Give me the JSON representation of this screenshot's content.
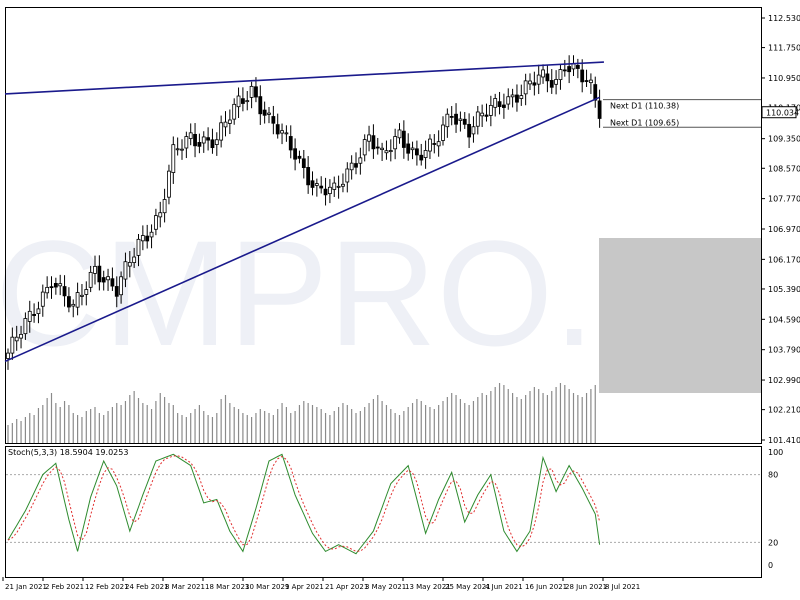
{
  "watermark": "CMPRO.IR",
  "chart_data": {
    "type": "candlestick",
    "y_axis": {
      "ticks": [
        112.53,
        111.75,
        110.95,
        110.17,
        109.35,
        108.57,
        107.77,
        106.97,
        106.17,
        105.39,
        104.59,
        103.79,
        102.99,
        102.21,
        101.41
      ]
    },
    "x_axis": {
      "labels": [
        "21 Jan 2021",
        "2 Feb 2021",
        "12 Feb 2021",
        "24 Feb 2021",
        "8 Mar 2021",
        "18 Mar 2021",
        "30 Mar 2021",
        "9 Apr 2021",
        "21 Apr 2021",
        "3 May 2021",
        "13 May 2021",
        "25 May 2021",
        "4 Jun 2021",
        "16 Jun 2021",
        "28 Jun 2021",
        "8 Jul 2021"
      ]
    },
    "current_price": "110.034",
    "levels": [
      {
        "label": "Next D1 (110.38)",
        "value": 110.38
      },
      {
        "label": "Next D1 (109.65)",
        "value": 109.65
      }
    ],
    "trendlines": [
      {
        "name": "upper",
        "from": {
          "bar": 0,
          "price": 110.53
        },
        "to": {
          "bar": 137,
          "price": 111.37
        }
      },
      {
        "name": "lower",
        "from": {
          "bar": 0,
          "price": 103.48
        },
        "to": {
          "bar": 136,
          "price": 110.44
        }
      }
    ],
    "close_anchors": [
      [
        0,
        103.7
      ],
      [
        5,
        104.6
      ],
      [
        10,
        105.7
      ],
      [
        15,
        104.8
      ],
      [
        20,
        106.0
      ],
      [
        25,
        105.3
      ],
      [
        30,
        106.6
      ],
      [
        35,
        107.4
      ],
      [
        38,
        108.9
      ],
      [
        42,
        109.4
      ],
      [
        48,
        109.3
      ],
      [
        53,
        110.3
      ],
      [
        56,
        110.7
      ],
      [
        60,
        109.8
      ],
      [
        66,
        109.0
      ],
      [
        71,
        108.0
      ],
      [
        75,
        107.9
      ],
      [
        78,
        108.5
      ],
      [
        83,
        109.4
      ],
      [
        86,
        108.8
      ],
      [
        90,
        109.5
      ],
      [
        94,
        108.9
      ],
      [
        98,
        109.1
      ],
      [
        102,
        110.1
      ],
      [
        106,
        109.6
      ],
      [
        110,
        110.0
      ],
      [
        114,
        110.4
      ],
      [
        118,
        110.6
      ],
      [
        122,
        110.9
      ],
      [
        126,
        110.9
      ],
      [
        128,
        111.4
      ],
      [
        131,
        111.1
      ],
      [
        134,
        110.6
      ],
      [
        136,
        110.034
      ]
    ],
    "volume_levels": [
      18,
      20,
      24,
      22,
      26,
      30,
      28,
      35,
      38,
      45,
      50,
      40,
      36,
      42,
      38,
      30,
      28,
      26,
      32,
      34,
      36,
      30,
      28,
      32,
      36,
      40,
      38,
      42,
      48,
      52,
      45,
      40,
      38,
      34,
      42,
      50,
      46,
      40,
      38,
      30,
      28,
      26,
      30,
      34,
      38,
      32,
      28,
      26,
      30,
      44,
      48,
      40,
      36,
      34,
      30,
      28,
      26,
      30,
      34,
      32,
      30,
      28,
      34,
      40,
      36,
      30,
      32,
      38,
      42,
      40,
      38,
      36,
      34,
      30,
      28,
      32,
      36,
      40,
      38,
      34,
      30,
      32,
      36,
      40,
      44,
      48,
      42,
      38,
      34,
      30,
      28,
      32,
      36,
      40,
      44,
      42,
      38,
      36,
      34,
      38,
      42,
      46,
      50,
      48,
      44,
      40,
      38,
      42,
      46,
      50,
      48,
      52,
      56,
      60,
      58,
      54,
      50,
      46,
      44,
      48,
      52,
      56,
      54,
      50,
      48,
      52,
      56,
      60,
      58,
      54,
      50,
      48,
      46,
      50,
      54,
      58
    ],
    "stochastic": {
      "label": "Stoch(5,3,3) 18.5904 19.0253",
      "y_ticks": [
        100,
        80,
        20,
        0
      ],
      "k_anchors": [
        [
          0,
          22
        ],
        [
          4,
          48
        ],
        [
          8,
          80
        ],
        [
          11,
          90
        ],
        [
          14,
          40
        ],
        [
          16,
          12
        ],
        [
          19,
          60
        ],
        [
          22,
          92
        ],
        [
          25,
          70
        ],
        [
          28,
          30
        ],
        [
          31,
          62
        ],
        [
          34,
          92
        ],
        [
          38,
          98
        ],
        [
          42,
          88
        ],
        [
          45,
          55
        ],
        [
          48,
          58
        ],
        [
          51,
          30
        ],
        [
          54,
          12
        ],
        [
          57,
          50
        ],
        [
          60,
          92
        ],
        [
          63,
          98
        ],
        [
          66,
          62
        ],
        [
          70,
          28
        ],
        [
          73,
          12
        ],
        [
          76,
          18
        ],
        [
          80,
          10
        ],
        [
          84,
          30
        ],
        [
          88,
          72
        ],
        [
          92,
          88
        ],
        [
          96,
          28
        ],
        [
          99,
          58
        ],
        [
          102,
          82
        ],
        [
          105,
          38
        ],
        [
          108,
          62
        ],
        [
          111,
          80
        ],
        [
          114,
          30
        ],
        [
          117,
          12
        ],
        [
          120,
          30
        ],
        [
          123,
          95
        ],
        [
          126,
          65
        ],
        [
          129,
          88
        ],
        [
          132,
          68
        ],
        [
          135,
          45
        ],
        [
          136,
          18
        ]
      ]
    },
    "grid": false
  }
}
